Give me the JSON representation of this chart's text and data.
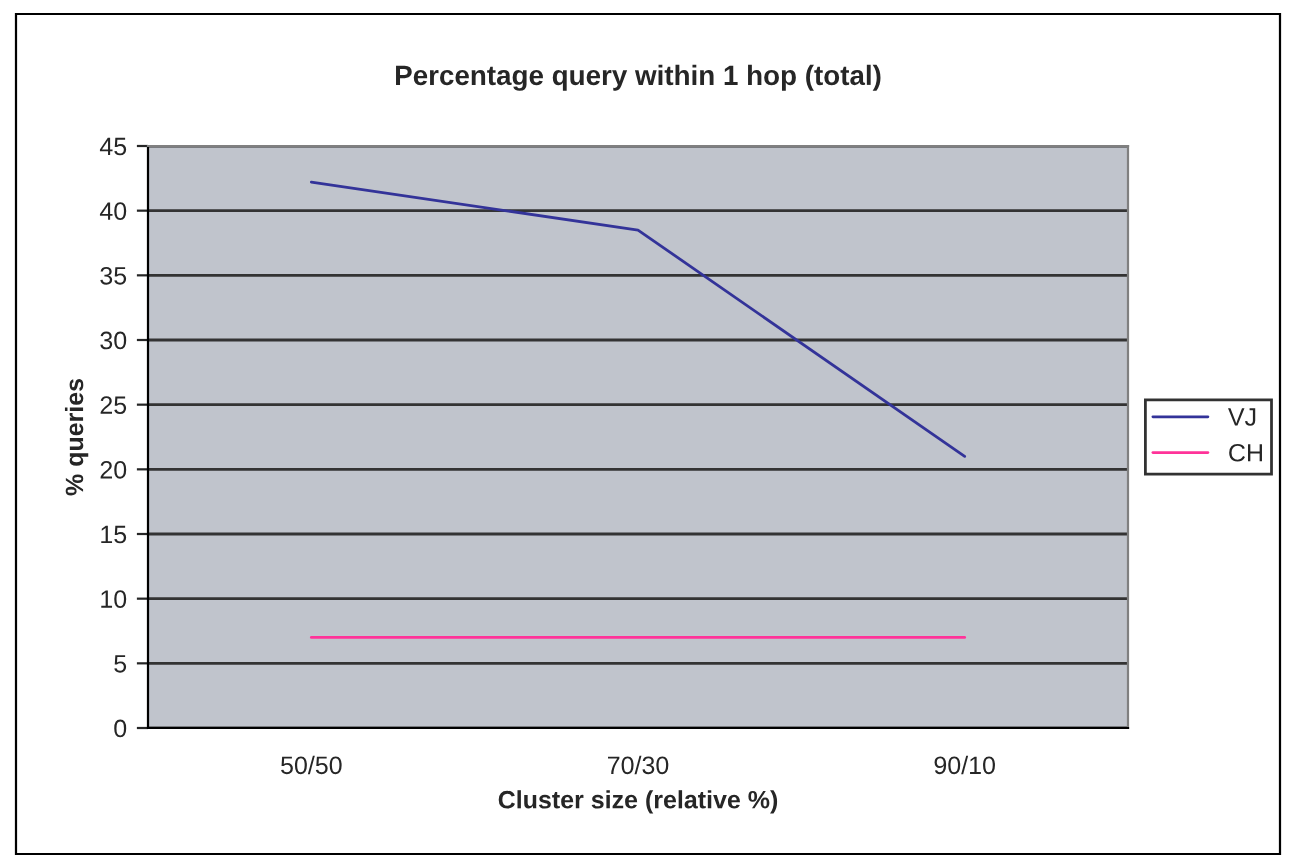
{
  "chart_data": {
    "type": "line",
    "title": "Percentage query within 1 hop (total)",
    "xlabel": "Cluster size (relative %)",
    "ylabel": "% queries",
    "categories": [
      "50/50",
      "70/30",
      "90/10"
    ],
    "series": [
      {
        "name": "VJ",
        "color": "#333399",
        "values": [
          42.2,
          38.5,
          21
        ]
      },
      {
        "name": "CH",
        "color": "#ff3399",
        "values": [
          7,
          7,
          7
        ]
      }
    ],
    "ylim": [
      0,
      45
    ],
    "yticks": [
      0,
      5,
      10,
      15,
      20,
      25,
      30,
      35,
      40,
      45
    ],
    "grid": "y",
    "legend": "right",
    "marker": "none",
    "line_style": "solid"
  }
}
